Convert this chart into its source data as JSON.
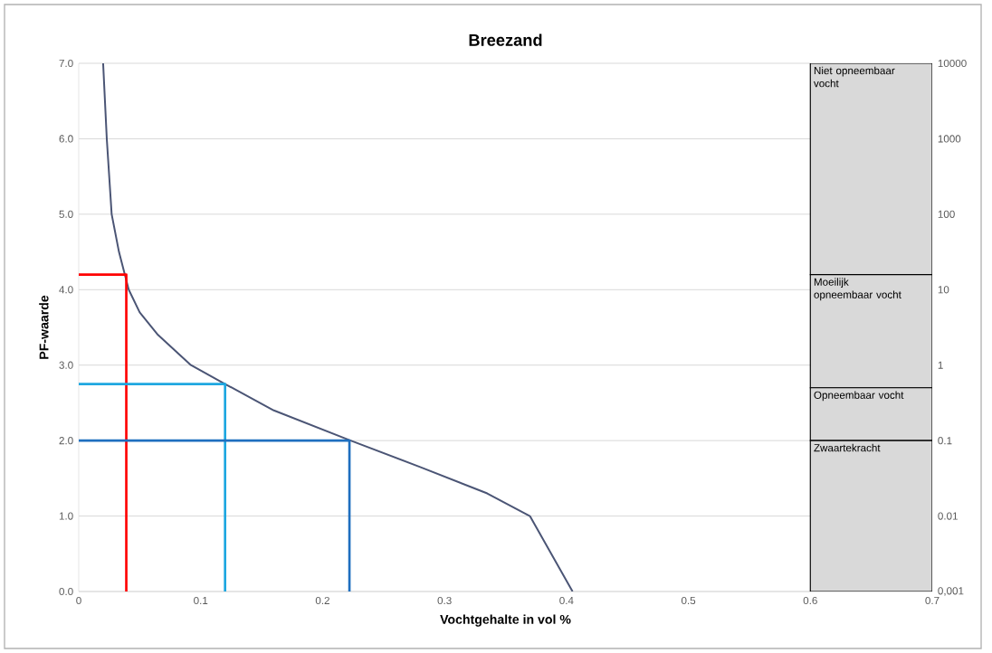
{
  "chart_data": {
    "type": "line",
    "title": "Breezand",
    "xlabel": "Vochtgehalte in vol %",
    "ylabel": "PF-waarde",
    "xlim": [
      0,
      0.7
    ],
    "xticks": [
      0,
      0.1,
      0.2,
      0.3,
      0.4,
      0.5,
      0.6,
      0.7
    ],
    "ylim": [
      0,
      7
    ],
    "yticks": [
      {
        "value": 0,
        "label": "0.0"
      },
      {
        "value": 1,
        "label": "1.0"
      },
      {
        "value": 2,
        "label": "2.0"
      },
      {
        "value": 3,
        "label": "3.0"
      },
      {
        "value": 4,
        "label": "4.0"
      },
      {
        "value": 5,
        "label": "5.0"
      },
      {
        "value": 6,
        "label": "6.0"
      },
      {
        "value": 7,
        "label": "7.0"
      }
    ],
    "log": "y2",
    "y2lim": [
      0.001,
      10000
    ],
    "y2ticks": [
      {
        "value": 0.001,
        "label": "0,001"
      },
      {
        "value": 0.01,
        "label": "0.01"
      },
      {
        "value": 0.1,
        "label": "0.1"
      },
      1,
      10,
      100,
      1000,
      10000
    ],
    "grid": "y",
    "marker": "none",
    "series": [
      {
        "color": "#4b5575",
        "x": [
          0.02,
          0.023,
          0.027,
          0.033,
          0.041,
          0.05,
          0.065,
          0.092,
          0.12,
          0.16,
          0.223,
          0.28,
          0.335,
          0.37,
          0.405
        ],
        "values": [
          7,
          6,
          5,
          4.5,
          4,
          3.7,
          3.4,
          3.0,
          2.75,
          2.4,
          2.0,
          1.65,
          1.3,
          1.0,
          0
        ]
      },
      {
        "color": "#ff0000",
        "x": [
          0,
          0.039,
          0.039
        ],
        "values": [
          4.2,
          4.2,
          0
        ]
      },
      {
        "color": "#1ea7e0",
        "x": [
          0,
          0.12,
          0.12
        ],
        "values": [
          2.75,
          2.75,
          0
        ]
      },
      {
        "color": "#1f6fbf",
        "x": [
          0,
          0.222,
          0.222
        ],
        "values": [
          2.0,
          2.0,
          0
        ]
      }
    ],
    "bands": [
      {
        "axis": "y",
        "from": 4.2,
        "to": 7,
        "label": "Niet opneembaar vocht",
        "color": "#d9d9d9"
      },
      {
        "axis": "y",
        "from": 2.7,
        "to": 4.2,
        "label": "Moeilijk opneembaar vocht",
        "color": "#d9d9d9"
      },
      {
        "axis": "y",
        "from": 2.0,
        "to": 2.7,
        "label": "Opneembaar vocht",
        "color": "#d9d9d9"
      },
      {
        "axis": "y",
        "from": 0,
        "to": 2.0,
        "label": "Zwaartekracht",
        "color": "#d9d9d9"
      }
    ]
  }
}
